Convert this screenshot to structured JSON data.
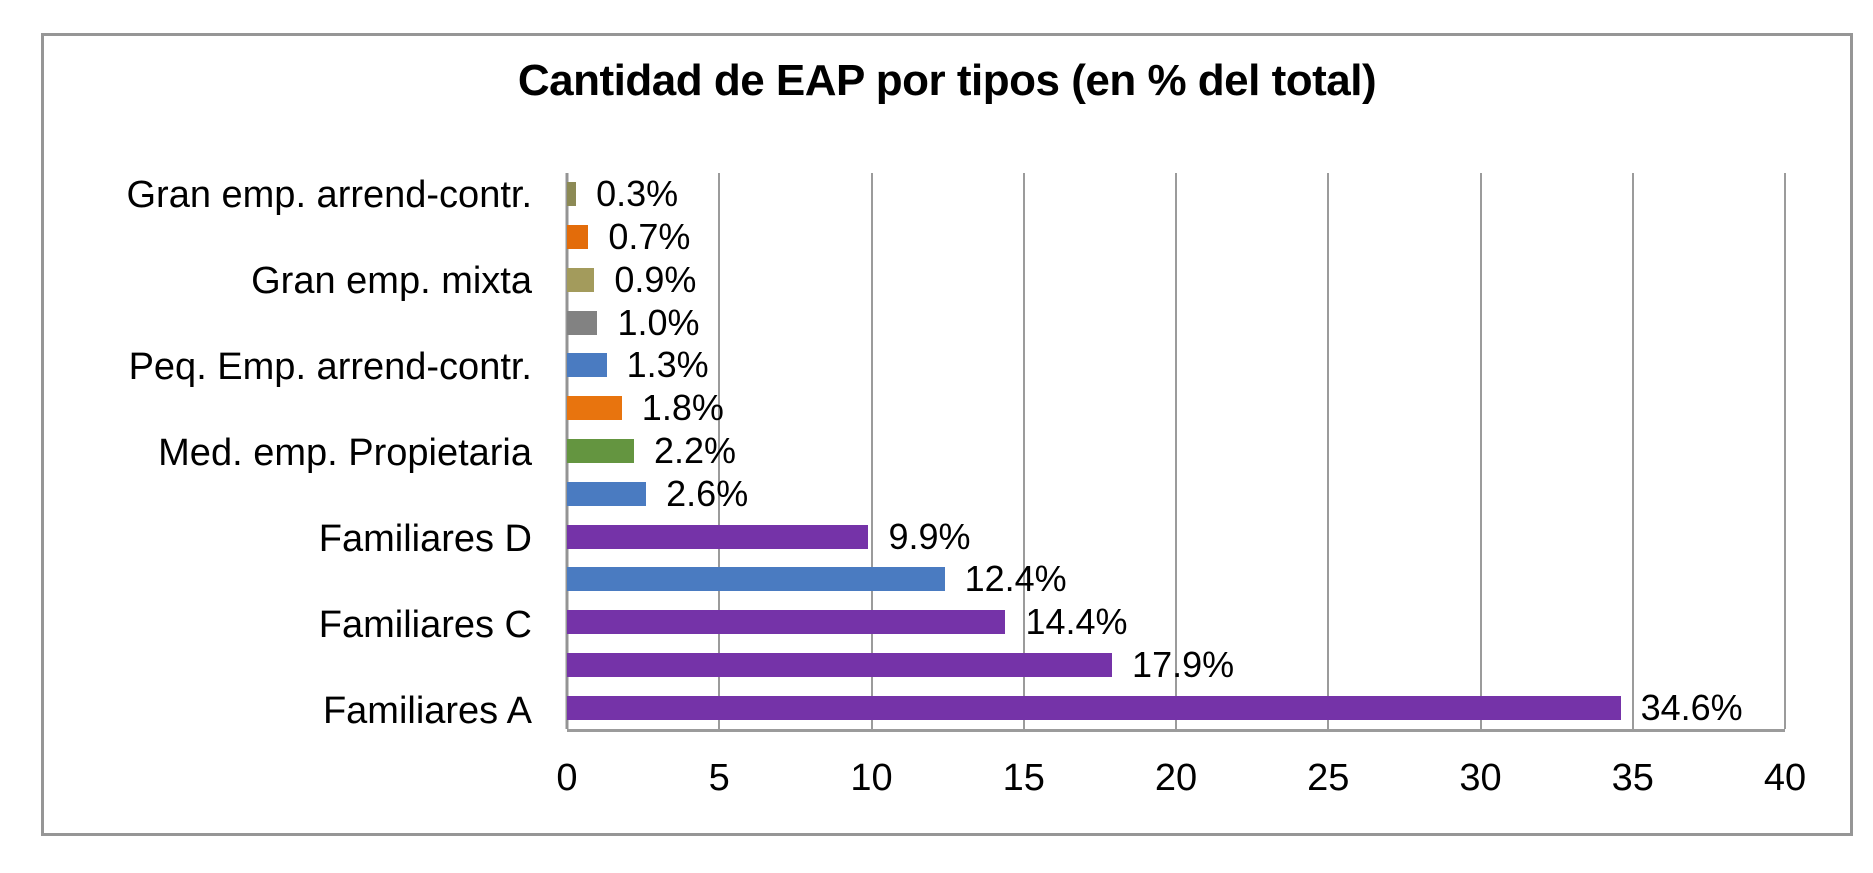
{
  "chart_data": {
    "type": "bar",
    "orientation": "horizontal",
    "title": "Cantidad de EAP por tipos (en % del total)",
    "xlabel": "",
    "ylabel": "",
    "xlim": [
      0,
      40
    ],
    "x_ticks": [
      0,
      5,
      10,
      15,
      20,
      25,
      30,
      35,
      40
    ],
    "grid": true,
    "legend": false,
    "value_labels": "outside-end",
    "rows": [
      {
        "category": "Gran emp. arrend-contr.",
        "value": 0.3,
        "label": "0.3%",
        "color": "#8c8a55"
      },
      {
        "category": "",
        "value": 0.7,
        "label": "0.7%",
        "color": "#e36c0a"
      },
      {
        "category": "Gran emp. mixta",
        "value": 0.9,
        "label": "0.9%",
        "color": "#a39b5c"
      },
      {
        "category": "",
        "value": 1.0,
        "label": "1.0%",
        "color": "#828282"
      },
      {
        "category": "Peq. Emp. arrend-contr.",
        "value": 1.3,
        "label": "1.3%",
        "color": "#4a7bc1"
      },
      {
        "category": "",
        "value": 1.8,
        "label": "1.8%",
        "color": "#e8740e"
      },
      {
        "category": "Med. emp. Propietaria",
        "value": 2.2,
        "label": "2.2%",
        "color": "#649540"
      },
      {
        "category": "",
        "value": 2.6,
        "label": "2.6%",
        "color": "#4a7bc1"
      },
      {
        "category": "Familiares D",
        "value": 9.9,
        "label": "9.9%",
        "color": "#7533a8"
      },
      {
        "category": "",
        "value": 12.4,
        "label": "12.4%",
        "color": "#4a7bc1"
      },
      {
        "category": "Familiares C",
        "value": 14.4,
        "label": "14.4%",
        "color": "#7533a8"
      },
      {
        "category": "",
        "value": 17.9,
        "label": "17.9%",
        "color": "#7533a8"
      },
      {
        "category": "Familiares A",
        "value": 34.6,
        "label": "34.6%",
        "color": "#7533a8"
      }
    ],
    "layout": {
      "grid_color": "#9b9b9b",
      "axis_line_color": "#949494",
      "frame_border_color": "#969696",
      "text_color": "#000000",
      "background_color": "#ffffff"
    }
  }
}
